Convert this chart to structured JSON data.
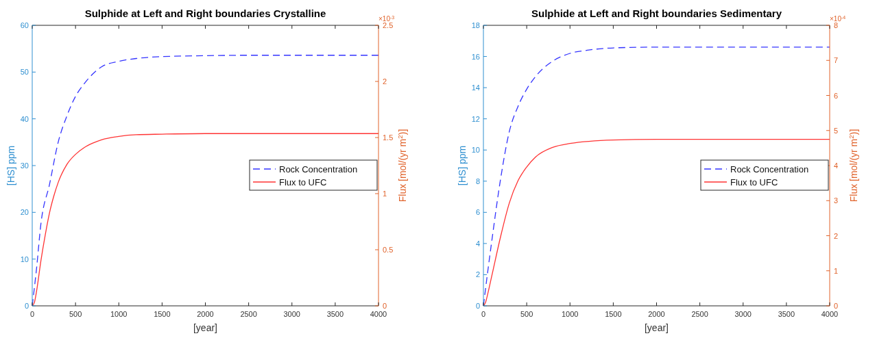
{
  "chart_data": [
    {
      "type": "line",
      "title": "Sulphide at Left and Right boundaries Crystalline",
      "xlabel": "[year]",
      "ylabel": "[HS] ppm",
      "y2label": "Flux [mol/(yr m$^{2}$)]",
      "annotations": [
        "×10$^{-3}$"
      ],
      "xlim": [
        0,
        4000
      ],
      "xticks": [
        0,
        500,
        1000,
        1500,
        2000,
        2500,
        3000,
        3500,
        4000
      ],
      "ylim": [
        0,
        60
      ],
      "yticks": [
        0,
        10,
        20,
        30,
        40,
        50,
        60
      ],
      "y2lim": [
        0,
        2.5
      ],
      "y2ticks": [
        0,
        0.5,
        1,
        1.5,
        2,
        2.5
      ],
      "legend": "right",
      "grid": false,
      "series": [
        {
          "name": "Rock Concentration",
          "color": "#3333ff",
          "line_style": "dashed",
          "x": [
            0,
            50,
            100,
            200,
            300,
            400,
            500,
            600,
            700,
            800,
            1000,
            1200,
            1500,
            2000,
            2500,
            3000,
            4000
          ],
          "values": [
            0,
            8,
            17.5,
            26,
            35,
            40.6,
            44.8,
            47.5,
            49.6,
            51.1,
            52.3,
            52.9,
            53.3,
            53.5,
            53.6,
            53.6,
            53.6
          ]
        },
        {
          "name": "Flux to UFC",
          "color": "#ff3333",
          "line_style": "solid",
          "axis": "y2",
          "x": [
            0,
            25,
            50,
            100,
            150,
            200,
            250,
            300,
            400,
            500,
            600,
            700,
            800,
            1000,
            1200,
            1500,
            2000,
            2500,
            3000,
            4000
          ],
          "values": [
            0,
            0.03,
            0.13,
            0.4,
            0.63,
            0.83,
            0.98,
            1.1,
            1.26,
            1.35,
            1.41,
            1.45,
            1.48,
            1.51,
            1.525,
            1.53,
            1.535,
            1.535,
            1.535,
            1.535
          ]
        }
      ]
    },
    {
      "type": "line",
      "title": "Sulphide at Left and Right boundaries Sedimentary",
      "xlabel": "[year]",
      "ylabel": "[HS] ppm",
      "y2label": "Flux [mol/(yr m$^{2}$)]",
      "annotations": [
        "×10$^{-4}$"
      ],
      "xlim": [
        0,
        4000
      ],
      "xticks": [
        0,
        500,
        1000,
        1500,
        2000,
        2500,
        3000,
        3500,
        4000
      ],
      "ylim": [
        0,
        18
      ],
      "yticks": [
        0,
        2,
        4,
        6,
        8,
        10,
        12,
        14,
        16,
        18
      ],
      "y2lim": [
        0,
        8
      ],
      "y2ticks": [
        0,
        1,
        2,
        3,
        4,
        5,
        6,
        7,
        8
      ],
      "legend": "right",
      "grid": false,
      "series": [
        {
          "name": "Rock Concentration",
          "color": "#3333ff",
          "line_style": "dashed",
          "x": [
            0,
            50,
            100,
            200,
            300,
            400,
            500,
            600,
            800,
            1000,
            1200,
            1500,
            2000,
            2500,
            3000,
            4000
          ],
          "values": [
            0,
            2.2,
            4.3,
            8.2,
            11.2,
            12.8,
            13.9,
            14.7,
            15.7,
            16.2,
            16.4,
            16.55,
            16.6,
            16.6,
            16.6,
            16.6
          ]
        },
        {
          "name": "Flux to UFC",
          "color": "#ff3333",
          "line_style": "solid",
          "axis": "y2",
          "x": [
            0,
            25,
            50,
            100,
            200,
            300,
            400,
            500,
            600,
            800,
            1000,
            1500,
            2000,
            2500,
            3000,
            4000
          ],
          "values": [
            0,
            0.1,
            0.34,
            0.89,
            1.99,
            2.94,
            3.57,
            3.96,
            4.24,
            4.52,
            4.63,
            4.73,
            4.75,
            4.75,
            4.75,
            4.75
          ]
        }
      ]
    }
  ]
}
